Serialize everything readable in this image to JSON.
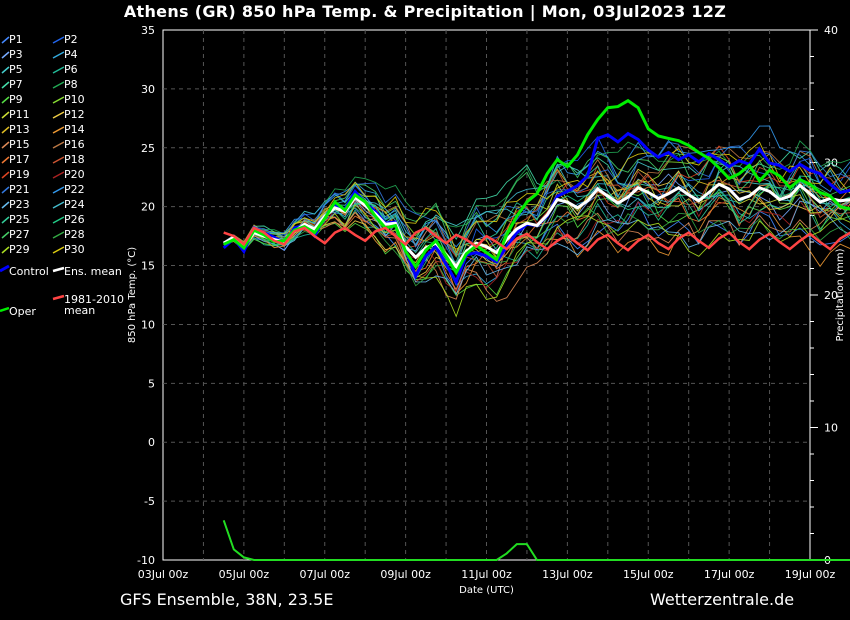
{
  "header": {
    "title": "Athens  (GR)  850 hPa Temp. & Precipitation | Mon, 03Jul2023 12Z"
  },
  "footer": {
    "left": "GFS Ensemble, 38N, 23.5E",
    "right": "Wetterzentrale.de"
  },
  "chart_data": {
    "type": "line",
    "xlabel": "Date (UTC)",
    "ylabel": "850 hPa Temp. (°C)",
    "y2label": "Precipitation (mm)",
    "ylim": [
      -10,
      35
    ],
    "y2lim": [
      0,
      40
    ],
    "y_ticks": [
      35,
      30,
      25,
      20,
      15,
      10,
      5,
      0,
      -5,
      -10
    ],
    "y2_ticks": [
      40,
      30,
      20,
      10,
      0
    ],
    "x_tick_labels": [
      "03Jul 00z",
      "05Jul 00z",
      "07Jul 00z",
      "09Jul 00z",
      "11Jul 00z",
      "13Jul 00z",
      "15Jul 00z",
      "17Jul 00z",
      "19Jul 00z"
    ],
    "x_tick_days": [
      0,
      2,
      4,
      6,
      8,
      10,
      12,
      14,
      16
    ],
    "x_range_days": [
      0,
      16
    ],
    "grid": true,
    "legend_position": "left",
    "time_step_days": 0.25,
    "start_day": 1.5,
    "members": [
      {
        "name": "P1",
        "color": "#4488ff"
      },
      {
        "name": "P2",
        "color": "#2266ee"
      },
      {
        "name": "P3",
        "color": "#77aaff"
      },
      {
        "name": "P4",
        "color": "#33aadd"
      },
      {
        "name": "P5",
        "color": "#44cccc"
      },
      {
        "name": "P6",
        "color": "#22bb99"
      },
      {
        "name": "P7",
        "color": "#44ddaa"
      },
      {
        "name": "P8",
        "color": "#22aa55"
      },
      {
        "name": "P9",
        "color": "#55dd44"
      },
      {
        "name": "P10",
        "color": "#88dd33"
      },
      {
        "name": "P11",
        "color": "#ccdd33"
      },
      {
        "name": "P12",
        "color": "#eecc44"
      },
      {
        "name": "P13",
        "color": "#ddbb22"
      },
      {
        "name": "P14",
        "color": "#ee9933"
      },
      {
        "name": "P15",
        "color": "#dd8855"
      },
      {
        "name": "P16",
        "color": "#bb7744"
      },
      {
        "name": "P17",
        "color": "#ee7733"
      },
      {
        "name": "P18",
        "color": "#cc5533"
      },
      {
        "name": "P19",
        "color": "#dd4422"
      },
      {
        "name": "P20",
        "color": "#aa2222"
      },
      {
        "name": "P21",
        "color": "#3377dd"
      },
      {
        "name": "P22",
        "color": "#3399ee"
      },
      {
        "name": "P23",
        "color": "#66bbee"
      },
      {
        "name": "P24",
        "color": "#44bbcc"
      },
      {
        "name": "P25",
        "color": "#33cc99"
      },
      {
        "name": "P26",
        "color": "#22cc88"
      },
      {
        "name": "P27",
        "color": "#44cc66"
      },
      {
        "name": "P28",
        "color": "#33aa44"
      },
      {
        "name": "P29",
        "color": "#aadd22"
      },
      {
        "name": "P30",
        "color": "#ddcc11"
      }
    ],
    "series": [
      {
        "name": "Control",
        "color": "#0000ff",
        "values": [
          16.5,
          17.3,
          16.2,
          18.2,
          17.8,
          17.4,
          16.9,
          18.2,
          18.4,
          17.5,
          19.2,
          20.1,
          19.8,
          21.3,
          20.3,
          19.6,
          18.6,
          18.7,
          16.3,
          14.1,
          15.8,
          16.6,
          15.1,
          13.6,
          15.9,
          16.1,
          15.8,
          15.3,
          16.6,
          17.8,
          18.5,
          18.4,
          19.2,
          20.9,
          21.3,
          21.8,
          22.6,
          25.8,
          26.1,
          25.5,
          26.2,
          25.7,
          24.8,
          24.2,
          24.6,
          24.0,
          24.4,
          23.8,
          24.5,
          24.0,
          23.4,
          23.9,
          23.6,
          24.9,
          23.7,
          23.5,
          23.0,
          23.6,
          23.1,
          22.8,
          21.9,
          21.2,
          21.4
        ]
      },
      {
        "name": "Ens. mean",
        "color": "#ffffff",
        "values": [
          16.9,
          17.4,
          16.6,
          17.8,
          17.5,
          17.2,
          17.0,
          17.9,
          18.5,
          18.1,
          19.2,
          19.9,
          19.6,
          20.8,
          20.1,
          19.4,
          18.5,
          18.6,
          16.6,
          15.7,
          16.5,
          16.9,
          15.9,
          14.9,
          16.2,
          16.9,
          16.6,
          16.1,
          17.2,
          18.1,
          18.6,
          18.4,
          19.3,
          20.6,
          20.4,
          19.9,
          20.5,
          21.5,
          20.9,
          20.3,
          20.8,
          21.6,
          21.2,
          20.7,
          21.1,
          21.6,
          21.0,
          20.5,
          21.2,
          21.9,
          21.5,
          20.6,
          20.9,
          21.6,
          21.3,
          20.6,
          20.9,
          21.8,
          21.1,
          20.4,
          20.7,
          20.5,
          20.6
        ]
      },
      {
        "name": "Oper",
        "color": "#00ee00",
        "values": [
          16.8,
          17.2,
          16.5,
          18.0,
          17.6,
          17.0,
          17.1,
          18.0,
          18.3,
          17.8,
          19.0,
          20.4,
          19.7,
          21.0,
          20.4,
          19.2,
          18.2,
          18.4,
          16.2,
          14.9,
          16.3,
          17.1,
          15.8,
          14.4,
          16.0,
          16.7,
          16.1,
          15.5,
          17.6,
          19.2,
          20.4,
          21.1,
          22.8,
          24.0,
          23.4,
          24.4,
          26.1,
          27.4,
          28.4,
          28.5,
          29.0,
          28.4,
          26.6,
          26.0,
          25.8,
          25.6,
          25.2,
          24.6,
          24.1,
          23.3,
          22.4,
          22.8,
          23.5,
          22.2,
          23.1,
          22.6,
          21.6,
          22.3,
          21.9,
          21.2,
          20.9,
          20.0,
          19.8
        ]
      },
      {
        "name": "1981-2010 mean",
        "color": "#ff4444",
        "values": [
          17.8,
          17.5,
          16.8,
          18.2,
          17.8,
          17.1,
          16.8,
          17.9,
          18.2,
          17.5,
          16.9,
          17.8,
          18.2,
          17.6,
          17.1,
          17.9,
          18.2,
          17.5,
          16.8,
          17.8,
          18.2,
          17.5,
          16.9,
          17.6,
          17.2,
          16.6,
          17.5,
          17.0,
          16.4,
          17.3,
          17.7,
          17.0,
          16.4,
          17.1,
          17.6,
          16.9,
          16.3,
          17.2,
          17.6,
          16.9,
          16.3,
          17.1,
          17.6,
          16.9,
          16.4,
          17.3,
          17.8,
          17.1,
          16.5,
          17.3,
          17.8,
          17.0,
          16.4,
          17.2,
          17.7,
          17.0,
          16.4,
          17.1,
          17.7,
          17.0,
          16.4,
          17.3,
          17.8
        ]
      }
    ],
    "precipitation_mm": [
      3.0,
      0.8,
      0.2,
      0,
      0,
      0,
      0,
      0,
      0,
      0,
      0,
      0,
      0,
      0,
      0,
      0,
      0,
      0,
      0,
      0,
      0,
      0,
      0,
      0,
      0,
      0,
      0,
      0,
      0.5,
      1.2,
      1.2,
      0,
      0,
      0,
      0,
      0,
      0,
      0,
      0,
      0,
      0,
      0,
      0,
      0,
      0,
      0,
      0,
      0,
      0,
      0,
      0,
      0,
      0,
      0,
      0,
      0,
      0,
      0,
      0,
      0,
      0,
      0,
      0
    ]
  },
  "legend": {
    "members_left": [
      "P1",
      "P3",
      "P5",
      "P7",
      "P9",
      "P11",
      "P13",
      "P15",
      "P17",
      "P19",
      "P21",
      "P23",
      "P25",
      "P27",
      "P29"
    ],
    "members_right": [
      "P2",
      "P4",
      "P6",
      "P8",
      "P10",
      "P12",
      "P14",
      "P16",
      "P18",
      "P20",
      "P22",
      "P24",
      "P26",
      "P28",
      "P30"
    ],
    "control": "Control",
    "ens_mean": "Ens. mean",
    "oper": "Oper",
    "clim_line1": "1981-2010",
    "clim_line2": "mean"
  }
}
